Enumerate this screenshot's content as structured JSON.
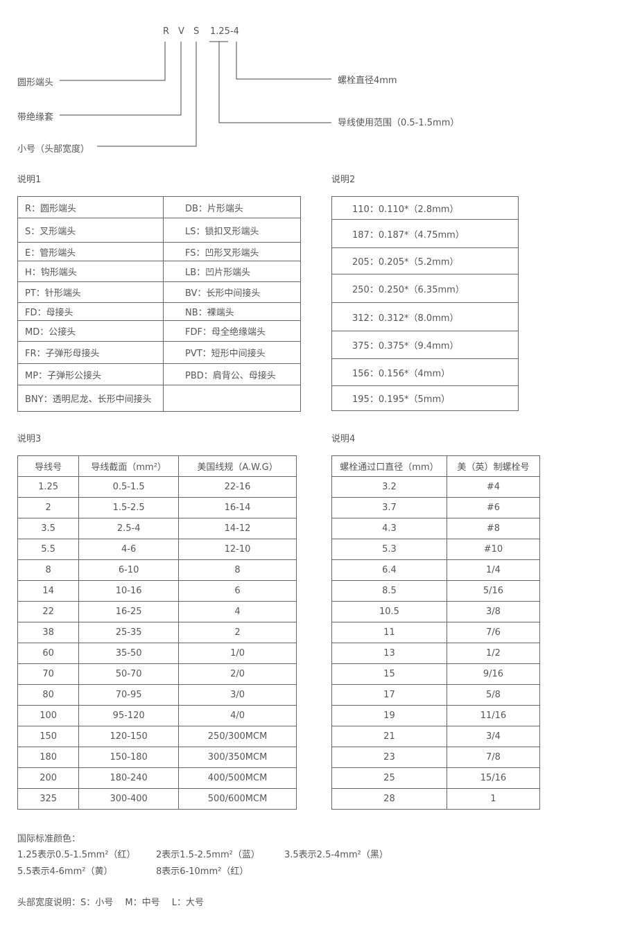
{
  "diagram": {
    "code": [
      "R",
      "V",
      "S",
      "1.25-4"
    ],
    "left_labels": [
      "圆形端头",
      "带绝缘套",
      "小号（头部宽度）"
    ],
    "right_labels": [
      "螺栓直径4mm",
      "导线使用范围（0.5-1.5mm）"
    ]
  },
  "note1": {
    "title": "说明1",
    "rows": [
      [
        "R：圆形端头",
        "DB：片形端头"
      ],
      [
        "S：叉形端头",
        "LS：锁扣叉形端头"
      ],
      [
        "E：管形端头",
        "FS：凹形叉形端头"
      ],
      [
        "H：钩形端头",
        "LB：凹片形端头"
      ],
      [
        "PT：针形端头",
        "BV：长形中间接头"
      ],
      [
        "FD：母接头",
        "NB：裸端头"
      ],
      [
        "MD：公接头",
        "FDF：母全绝缘端头"
      ],
      [
        "FR：子弹形母接头",
        "PVT：短形中间接头"
      ],
      [
        "MP：子弹形公接头",
        "PBD：肩背公、母接头"
      ],
      [
        "BNY：透明尼龙、长形中间接头",
        ""
      ]
    ]
  },
  "note2": {
    "title": "说明2",
    "rows": [
      "110：0.110*（2.8mm）",
      "187：0.187*（4.75mm）",
      "205：0.205*（5.2mm）",
      "250：0.250*（6.35mm）",
      "312：0.312*（8.0mm）",
      "375：0.375*（9.4mm）",
      "156：0.156*（4mm）",
      "195：0.195*（5mm）"
    ]
  },
  "note3": {
    "title": "说明3",
    "headers": [
      "导线号",
      "导线截面（mm²）",
      "美国线规（A.W.G）"
    ],
    "rows": [
      [
        "1.25",
        "0.5-1.5",
        "22-16"
      ],
      [
        "2",
        "1.5-2.5",
        "16-14"
      ],
      [
        "3.5",
        "2.5-4",
        "14-12"
      ],
      [
        "5.5",
        "4-6",
        "12-10"
      ],
      [
        "8",
        "6-10",
        "8"
      ],
      [
        "14",
        "10-16",
        "6"
      ],
      [
        "22",
        "16-25",
        "4"
      ],
      [
        "38",
        "25-35",
        "2"
      ],
      [
        "60",
        "35-50",
        "1/0"
      ],
      [
        "70",
        "50-70",
        "2/0"
      ],
      [
        "80",
        "70-95",
        "3/0"
      ],
      [
        "100",
        "95-120",
        "4/0"
      ],
      [
        "150",
        "120-150",
        "250/300MCM"
      ],
      [
        "180",
        "150-180",
        "300/350MCM"
      ],
      [
        "200",
        "180-240",
        "400/500MCM"
      ],
      [
        "325",
        "300-400",
        "500/600MCM"
      ]
    ]
  },
  "note4": {
    "title": "说明4",
    "headers": [
      "螺栓通过口直径（mm）",
      "美（英）制螺栓号"
    ],
    "rows": [
      [
        "3.2",
        "#4"
      ],
      [
        "3.7",
        "#6"
      ],
      [
        "4.3",
        "#8"
      ],
      [
        "5.3",
        "#10"
      ],
      [
        "6.4",
        "1/4"
      ],
      [
        "8.5",
        "5/16"
      ],
      [
        "10.5",
        "3/8"
      ],
      [
        "11",
        "7/6"
      ],
      [
        "13",
        "1/2"
      ],
      [
        "15",
        "9/16"
      ],
      [
        "17",
        "5/8"
      ],
      [
        "19",
        "11/16"
      ],
      [
        "21",
        "3/4"
      ],
      [
        "23",
        "7/8"
      ],
      [
        "25",
        "15/16"
      ],
      [
        "28",
        "1"
      ]
    ]
  },
  "colors": {
    "title": "国际标准颜色：",
    "items": [
      "1.25表示0.5-1.5mm²（红）",
      "2表示1.5-2.5mm²（蓝）",
      "3.5表示2.5-4mm²（黑）",
      "5.5表示4-6mm²（黄）",
      "8表示6-10mm²（红）"
    ]
  },
  "head_width": "头部宽度说明：S：小号　 M：中号　 L：大号"
}
